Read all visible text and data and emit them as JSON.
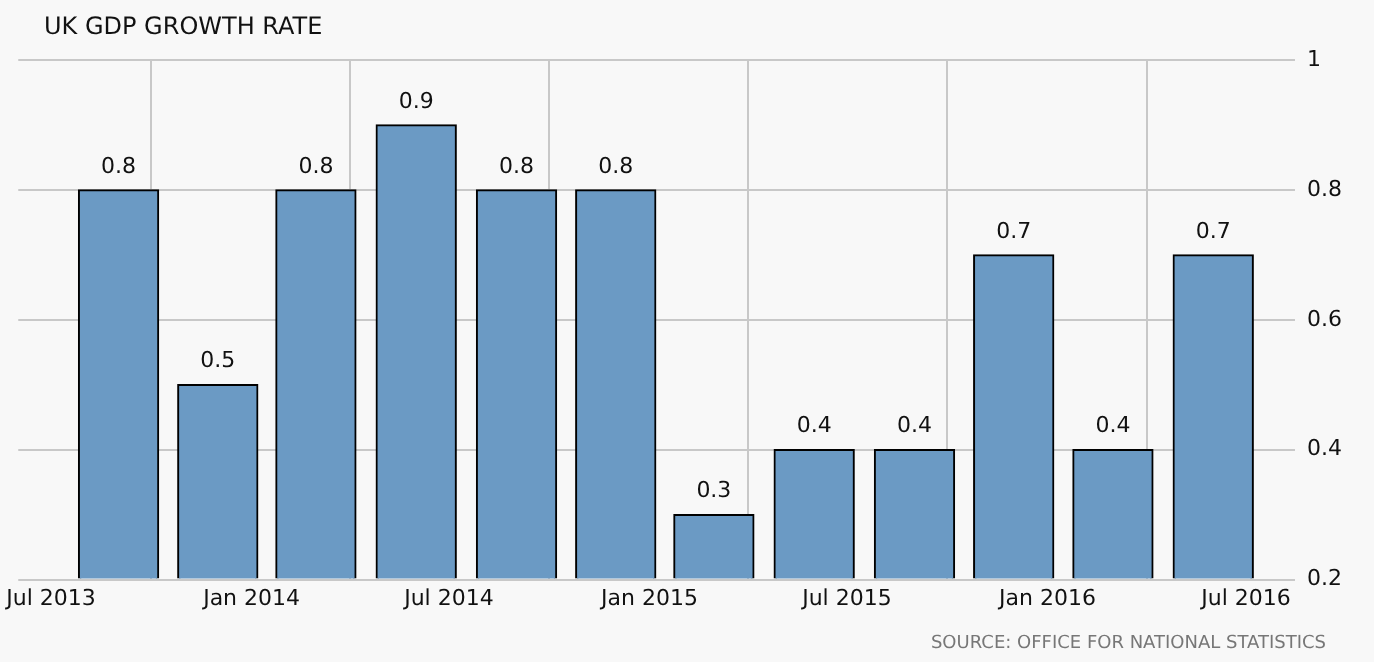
{
  "chart_data": {
    "type": "bar",
    "title": "UK GDP GROWTH RATE",
    "x": [
      "2013-09",
      "2013-12",
      "2014-03",
      "2014-06",
      "2014-09",
      "2014-12",
      "2015-03",
      "2015-06",
      "2015-09",
      "2015-12",
      "2016-03",
      "2016-06"
    ],
    "values": [
      0.8,
      0.5,
      0.8,
      0.9,
      0.8,
      0.8,
      0.3,
      0.4,
      0.4,
      0.7,
      0.4,
      0.7
    ],
    "color": "#6b9ac4",
    "data_labels": true,
    "xlim": [
      "2013-06-01",
      "2016-08-15"
    ],
    "xticks": [
      {
        "value": "2013-07",
        "label": "Jul 2013"
      },
      {
        "value": "2014-01",
        "label": "Jan 2014"
      },
      {
        "value": "2014-07",
        "label": "Jul 2014"
      },
      {
        "value": "2015-01",
        "label": "Jan 2015"
      },
      {
        "value": "2015-07",
        "label": "Jul 2015"
      },
      {
        "value": "2016-01",
        "label": "Jan 2016"
      },
      {
        "value": "2016-07",
        "label": "Jul 2016"
      }
    ],
    "ylim": [
      0.2,
      1
    ],
    "yticks": [
      0.2,
      0.4,
      0.6,
      0.8,
      1
    ],
    "grid": true,
    "legend": false,
    "annotations": [
      "SOURCE: OFFICE FOR NATIONAL STATISTICS"
    ]
  }
}
